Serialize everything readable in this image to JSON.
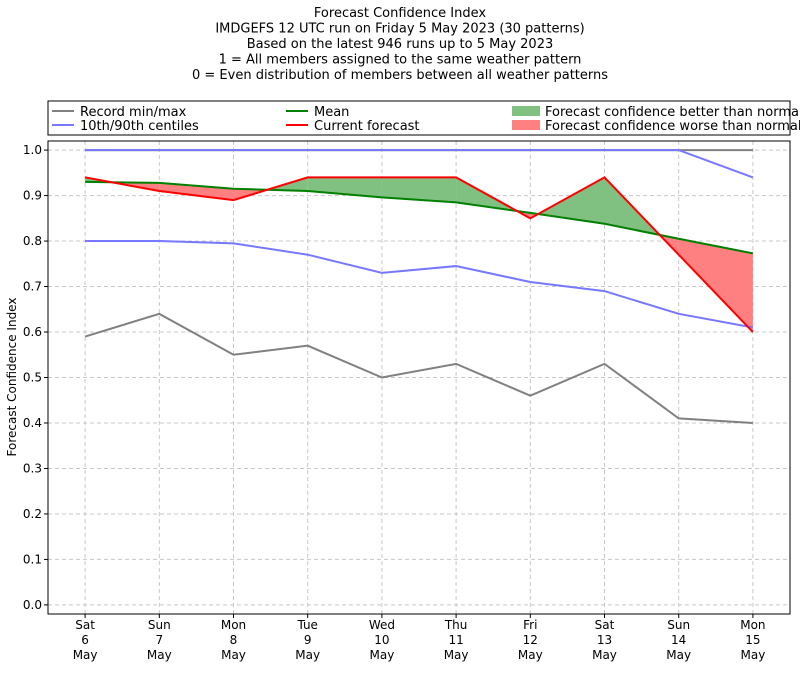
{
  "chart_data": {
    "type": "line",
    "title_lines": [
      "Forecast Confidence Index",
      "IMDGEFS 12 UTC run on Friday 5 May 2023 (30 patterns)",
      "Based on the latest 946 runs up to 5 May 2023",
      "1 = All members assigned to the same weather pattern",
      "0 = Even distribution of members between all weather patterns"
    ],
    "ylabel": "Forecast Confidence Index",
    "xlabel": "",
    "categories": [
      [
        "Sat",
        "6",
        "May"
      ],
      [
        "Sun",
        "7",
        "May"
      ],
      [
        "Mon",
        "8",
        "May"
      ],
      [
        "Tue",
        "9",
        "May"
      ],
      [
        "Wed",
        "10",
        "May"
      ],
      [
        "Thu",
        "11",
        "May"
      ],
      [
        "Fri",
        "12",
        "May"
      ],
      [
        "Sat",
        "13",
        "May"
      ],
      [
        "Sun",
        "14",
        "May"
      ],
      [
        "Mon",
        "15",
        "May"
      ]
    ],
    "yticks": [
      "0.0",
      "0.1",
      "0.2",
      "0.3",
      "0.4",
      "0.5",
      "0.6",
      "0.7",
      "0.8",
      "0.9",
      "1.0"
    ],
    "ylim": [
      -0.02,
      1.02
    ],
    "xlim": [
      -0.5,
      9.5
    ],
    "grid": true,
    "legend_placement": "top, outside",
    "series": {
      "record_min": {
        "values": [
          0.59,
          0.64,
          0.55,
          0.57,
          0.5,
          0.53,
          0.46,
          0.53,
          0.41,
          0.4
        ],
        "color": "#808080"
      },
      "record_max": {
        "values": [
          1.0,
          1.0,
          1.0,
          1.0,
          1.0,
          1.0,
          1.0,
          1.0,
          1.0,
          1.0
        ],
        "color": "#808080"
      },
      "centile_10": {
        "values": [
          0.8,
          0.8,
          0.795,
          0.77,
          0.73,
          0.745,
          0.71,
          0.69,
          0.64,
          0.61
        ],
        "color": "#7777ff"
      },
      "centile_90": {
        "values": [
          1.0,
          1.0,
          1.0,
          1.0,
          1.0,
          1.0,
          1.0,
          1.0,
          1.0,
          0.94
        ],
        "color": "#7777ff"
      },
      "mean": {
        "values": [
          0.93,
          0.928,
          0.915,
          0.91,
          0.896,
          0.885,
          0.862,
          0.838,
          0.805,
          0.773
        ],
        "color": "#008000"
      },
      "current": {
        "values": [
          0.94,
          0.91,
          0.89,
          0.94,
          0.94,
          0.94,
          0.85,
          0.94,
          0.77,
          0.6
        ],
        "color": "#ff0000"
      }
    },
    "fill_better_color": "#80c080",
    "fill_worse_color": "#ff8080",
    "legend": [
      {
        "label": "Record min/max",
        "kind": "line",
        "color": "#808080"
      },
      {
        "label": "10th/90th centiles",
        "kind": "line",
        "color": "#7777ff"
      },
      {
        "label": "Mean",
        "kind": "line",
        "color": "#008000"
      },
      {
        "label": "Current forecast",
        "kind": "line",
        "color": "#ff0000"
      },
      {
        "label": "Forecast confidence better than normal",
        "kind": "patch",
        "color": "#80c080"
      },
      {
        "label": "Forecast confidence worse than normal",
        "kind": "patch",
        "color": "#ff8080"
      }
    ]
  }
}
